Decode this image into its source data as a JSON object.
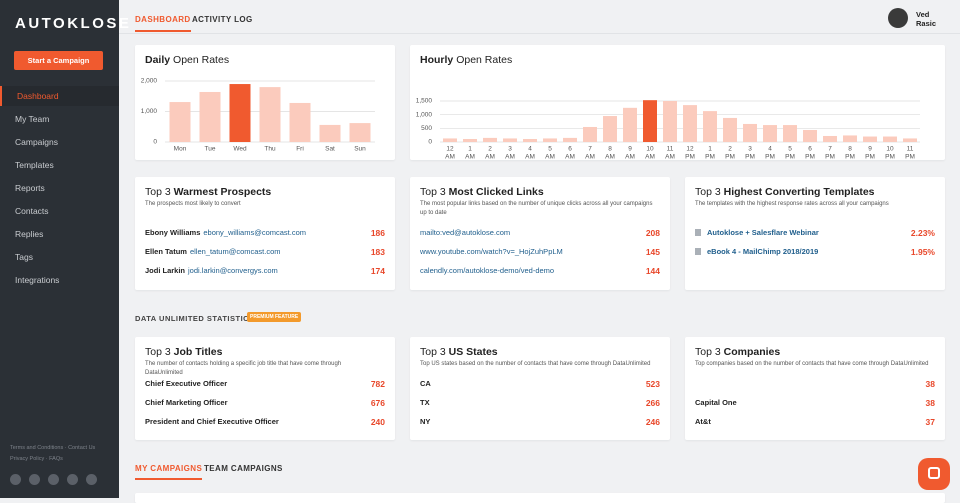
{
  "sidebar": {
    "logo": "AUTOKLOSE",
    "cta": "Start a Campaign",
    "nav": [
      "Dashboard",
      "My Team",
      "Campaigns",
      "Templates",
      "Reports",
      "Contacts",
      "Replies",
      "Tags",
      "Integrations"
    ],
    "active_index": 0,
    "footer": [
      "Terms and Conditions · Contact Us",
      "Privacy Policy · FAQs"
    ]
  },
  "tabs": {
    "items": [
      "DASHBOARD",
      "ACTIVITY LOG"
    ],
    "active_index": 0
  },
  "user": {
    "first_name": "Ved",
    "last_name": "Rasic"
  },
  "chart_data": [
    {
      "type": "bar",
      "title_strong": "Daily",
      "title": "Open Rates",
      "categories": [
        "Mon",
        "Tue",
        "Wed",
        "Thu",
        "Fri",
        "Sat",
        "Sun"
      ],
      "values": [
        1310,
        1640,
        1900,
        1800,
        1280,
        560,
        620
      ],
      "color": "#fbcbbd",
      "highlight_index": 2,
      "highlight_color": "#f05a2f",
      "ylim": [
        0,
        2100
      ],
      "yticks": [
        0,
        {
          "value": 1000,
          "label": "1,000"
        },
        {
          "value": 2000,
          "label": "2,000"
        }
      ],
      "grid": true
    },
    {
      "type": "bar",
      "title_strong": "Hourly",
      "title": "Open Rates",
      "categories": [
        "12",
        "1",
        "2",
        "3",
        "4",
        "5",
        "6",
        "7",
        "8",
        "9",
        "10",
        "11",
        "12",
        "1",
        "2",
        "3",
        "4",
        "5",
        "6",
        "7",
        "8",
        "9",
        "10",
        "11"
      ],
      "category_suffixes": [
        "AM",
        "AM",
        "AM",
        "AM",
        "AM",
        "AM",
        "AM",
        "AM",
        "AM",
        "AM",
        "AM",
        "AM",
        "PM",
        "PM",
        "PM",
        "PM",
        "PM",
        "PM",
        "PM",
        "PM",
        "PM",
        "PM",
        "PM",
        "PM"
      ],
      "values": [
        130,
        110,
        150,
        130,
        110,
        130,
        150,
        550,
        950,
        1250,
        1530,
        1500,
        1350,
        1130,
        880,
        660,
        620,
        620,
        440,
        220,
        240,
        200,
        200,
        130
      ],
      "color": "#fbcbbd",
      "highlight_index": 10,
      "highlight_color": "#f05a2f",
      "ylim": [
        0,
        1600
      ],
      "yticks": [
        0,
        500,
        {
          "value": 1000,
          "label": "1,000"
        },
        {
          "value": 1500,
          "label": "1,500"
        }
      ],
      "grid": true
    }
  ],
  "top_cards": [
    {
      "prefix": "Top 3",
      "title": "Warmest Prospects",
      "subtitle": "The prospects most likely to convert",
      "rows": [
        {
          "name": "Ebony Williams",
          "email": "ebony_williams@comcast.com",
          "count": 186
        },
        {
          "name": "Ellen Tatum",
          "email": "ellen_tatum@comcast.com",
          "count": 183
        },
        {
          "name": "Jodi Larkin",
          "email": "jodi.larkin@convergys.com",
          "count": 174
        }
      ]
    },
    {
      "prefix": "Top 3",
      "title": "Most Clicked Links",
      "subtitle": "The most popular links based on the number of unique clicks across all your campaigns up to date",
      "rows": [
        {
          "url": "mailto:ved@autoklose.com",
          "count": 208
        },
        {
          "url": "www.youtube.com/watch?v=_HojZuhPpLM",
          "count": 145
        },
        {
          "url": "calendly.com/autoklose-demo/ved-demo",
          "count": 144
        }
      ]
    },
    {
      "prefix": "Top 3",
      "title": "Highest Converting Templates",
      "subtitle": "The templates with the highest response rates across all your campaigns",
      "rows": [
        {
          "template": "Autoklose + Salesflare Webinar",
          "rate": "2.23%"
        },
        {
          "template": "eBook 4 - MailChimp 2018/2019",
          "rate": "1.95%"
        }
      ]
    }
  ],
  "section": {
    "title": "DATA UNLIMITED STATISTICS",
    "badge": "PREMIUM FEATURE"
  },
  "stat_cards": [
    {
      "prefix": "Top 3",
      "title": "Job Titles",
      "subtitle": "The number of contacts holding a specific job title that have come through DataUnlimited",
      "rows": [
        {
          "label": "Chief Executive Officer",
          "count": 782
        },
        {
          "label": "Chief Marketing Officer",
          "count": 676
        },
        {
          "label": "President and Chief Executive Officer",
          "count": 240
        }
      ]
    },
    {
      "prefix": "Top 3",
      "title": "US States",
      "subtitle": "Top US states based on the number of contacts that have come through DataUnlimited",
      "rows": [
        {
          "label": "CA",
          "count": 523
        },
        {
          "label": "TX",
          "count": 266
        },
        {
          "label": "NY",
          "count": 246
        }
      ]
    },
    {
      "prefix": "Top 3",
      "title": "Companies",
      "subtitle": "Top companies based on the number of contacts that have come through DataUnlimited",
      "rows": [
        {
          "label": null,
          "count": 38
        },
        {
          "label": "Capital One",
          "count": 38
        },
        {
          "label": "At&t",
          "count": 37
        }
      ]
    }
  ],
  "bottom_tabs": {
    "items": [
      "MY CAMPAIGNS",
      "TEAM CAMPAIGNS"
    ],
    "active_index": 0
  }
}
